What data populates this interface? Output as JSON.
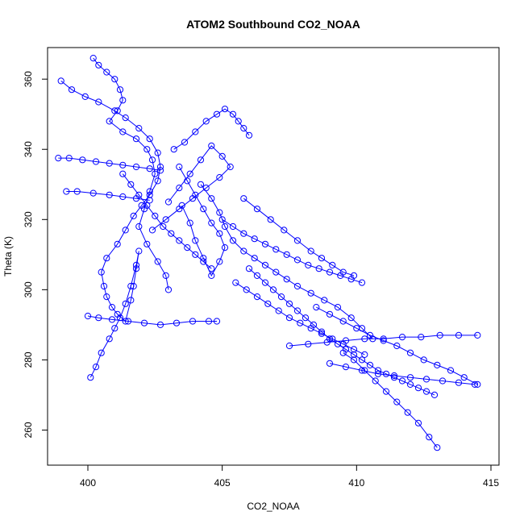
{
  "chart_data": {
    "type": "scatter",
    "title": "ATOM2 Southbound CO2_NOAA",
    "xlabel": "CO2_NOAA",
    "ylabel": "Theta (K)",
    "xlim": [
      398.5,
      415.3
    ],
    "ylim": [
      250.0,
      369.0
    ],
    "xticks": [
      400,
      405,
      410,
      415
    ],
    "yticks": [
      260,
      280,
      300,
      320,
      340,
      360
    ],
    "marker": "open-circle",
    "connected": true,
    "grid": false,
    "legend": "none",
    "colors": {
      "series": "#0000ff",
      "axes": "#000000",
      "background": "#ffffff"
    },
    "series": [
      {
        "x": [
          399.0,
          399.4,
          399.9,
          400.4,
          401.0,
          401.4,
          401.9,
          402.3,
          402.6,
          402.7,
          402.6,
          402.3,
          402.0,
          401.7,
          401.4,
          401.1,
          400.7,
          400.5,
          400.6,
          400.7,
          400.9,
          401.1,
          401.4,
          401.6,
          401.7,
          401.8,
          401.9,
          401.8,
          401.6,
          401.4,
          401.2,
          401.0,
          400.8,
          400.5,
          400.3,
          400.1
        ],
        "y": [
          359.5,
          357.0,
          355.0,
          353.5,
          351.0,
          349.0,
          346.0,
          343.0,
          339.0,
          335.0,
          331.0,
          327.0,
          324.0,
          321.0,
          317.0,
          313.0,
          309.0,
          305.0,
          301.0,
          298.0,
          295.0,
          293.0,
          291.0,
          297.0,
          301.0,
          306.0,
          311.0,
          307.0,
          301.0,
          296.0,
          292.0,
          289.0,
          286.0,
          282.0,
          278.0,
          275.0
        ]
      },
      {
        "x": [
          400.2,
          400.4,
          400.7,
          401.0,
          401.2,
          401.3,
          401.1,
          400.8,
          401.3,
          401.8,
          402.2,
          402.4,
          402.5,
          402.3,
          402.1,
          401.9,
          402.2,
          402.6,
          402.9,
          403.0
        ],
        "y": [
          366.0,
          364.0,
          362.0,
          360.0,
          357.0,
          354.0,
          351.0,
          348.0,
          345.0,
          343.0,
          340.0,
          337.0,
          333.0,
          328.0,
          323.0,
          318.0,
          313.0,
          308.0,
          304.0,
          300.0
        ]
      },
      {
        "x": [
          398.9,
          399.3,
          399.8,
          400.3,
          400.8,
          401.3,
          401.8,
          402.3,
          402.7
        ],
        "y": [
          337.5,
          337.5,
          337.0,
          336.5,
          336.0,
          335.5,
          335.0,
          334.5,
          334.0
        ]
      },
      {
        "x": [
          399.2,
          399.6,
          400.2,
          400.8,
          401.3,
          401.8,
          402.3
        ],
        "y": [
          328.0,
          328.0,
          327.5,
          327.0,
          326.5,
          326.0,
          325.5
        ]
      },
      {
        "x": [
          400.0,
          400.4,
          400.9,
          401.5,
          402.1,
          402.7,
          403.3,
          403.9,
          404.5,
          404.8
        ],
        "y": [
          292.5,
          292.0,
          291.5,
          291.0,
          290.5,
          290.0,
          290.5,
          291.0,
          291.0,
          291.0
        ]
      },
      {
        "x": [
          403.2,
          403.6,
          404.0,
          404.4,
          404.8,
          405.1,
          405.4,
          405.6,
          405.8,
          406.0
        ],
        "y": [
          340.0,
          342.0,
          345.0,
          348.0,
          350.0,
          351.5,
          350.0,
          348.0,
          346.0,
          344.0
        ]
      },
      {
        "x": [
          403.4,
          403.7,
          404.0,
          404.3,
          404.6,
          404.9,
          405.1,
          404.9,
          404.6,
          404.3,
          404.0,
          403.8,
          403.5
        ],
        "y": [
          335.0,
          331.0,
          327.0,
          323.0,
          319.0,
          316.0,
          312.0,
          308.0,
          304.0,
          309.0,
          314.0,
          319.0,
          324.0
        ]
      },
      {
        "x": [
          404.2,
          404.6,
          404.9,
          405.1,
          405.4,
          405.8,
          406.2,
          406.6,
          407.0,
          407.4,
          407.8,
          408.3,
          408.8,
          409.3,
          409.8,
          410.2,
          410.6
        ],
        "y": [
          330.0,
          326.0,
          322.0,
          318.0,
          314.0,
          311.0,
          309.0,
          307.0,
          305.0,
          303.0,
          301.0,
          299.0,
          297.0,
          295.0,
          292.0,
          289.0,
          286.0
        ]
      },
      {
        "x": [
          405.8,
          406.3,
          406.8,
          407.3,
          407.8,
          408.3,
          408.7,
          409.1,
          409.5,
          409.9
        ],
        "y": [
          326.0,
          323.0,
          320.0,
          317.0,
          314.0,
          311.0,
          309.0,
          307.0,
          305.0,
          304.0
        ]
      },
      {
        "x": [
          405.5,
          405.9,
          406.3,
          406.7,
          407.1,
          407.5,
          407.9,
          408.3,
          408.7,
          409.1,
          409.5,
          409.9,
          410.3
        ],
        "y": [
          302.0,
          300.0,
          298.0,
          296.0,
          294.0,
          292.0,
          290.5,
          289.0,
          287.5,
          286.0,
          284.5,
          283.0,
          281.5
        ]
      },
      {
        "x": [
          408.5,
          409.0,
          409.5,
          410.0,
          410.5,
          411.0,
          411.5,
          412.0,
          412.5,
          413.0,
          413.5,
          414.0,
          414.5
        ],
        "y": [
          295.0,
          293.0,
          291.0,
          289.0,
          287.0,
          285.5,
          284.0,
          282.0,
          280.0,
          278.5,
          277.0,
          275.0,
          273.0
        ]
      },
      {
        "x": [
          409.5,
          409.9,
          410.3,
          410.7,
          411.1,
          411.5,
          411.9,
          412.3,
          412.7,
          413.0
        ],
        "y": [
          282.0,
          280.0,
          277.0,
          274.0,
          271.0,
          268.0,
          265.0,
          262.0,
          258.0,
          255.0
        ]
      },
      {
        "x": [
          409.0,
          409.6,
          410.2,
          410.8,
          411.4,
          412.0,
          412.6,
          413.2,
          413.8,
          414.4
        ],
        "y": [
          279.0,
          278.0,
          277.0,
          276.0,
          275.5,
          275.0,
          274.5,
          274.0,
          273.5,
          273.0
        ]
      },
      {
        "x": [
          407.5,
          408.2,
          408.9,
          409.6,
          410.3,
          411.0,
          411.7,
          412.4,
          413.1,
          413.8,
          414.5
        ],
        "y": [
          284.0,
          284.5,
          285.0,
          285.5,
          286.0,
          286.0,
          286.5,
          286.5,
          287.0,
          287.0,
          287.0
        ]
      },
      {
        "x": [
          402.4,
          402.9,
          403.4,
          403.9,
          404.4,
          404.9,
          405.3,
          405.0,
          404.6,
          404.2,
          403.8,
          403.4,
          403.0
        ],
        "y": [
          317.0,
          320.0,
          323.0,
          326.0,
          329.0,
          332.0,
          335.0,
          338.0,
          341.0,
          337.0,
          333.0,
          329.0,
          325.0
        ]
      },
      {
        "x": [
          406.0,
          406.3,
          406.6,
          406.9,
          407.2,
          407.5,
          407.8,
          408.1,
          408.4,
          408.7,
          409.0,
          409.3,
          409.6,
          409.9,
          410.2,
          410.5,
          410.8,
          411.1,
          411.4,
          411.7,
          412.0,
          412.3,
          412.6,
          412.9
        ],
        "y": [
          306.0,
          304.0,
          302.0,
          300.0,
          298.0,
          296.0,
          294.0,
          292.0,
          290.0,
          288.0,
          286.0,
          284.5,
          283.0,
          281.5,
          280.0,
          278.5,
          277.0,
          276.0,
          275.0,
          274.0,
          273.0,
          272.0,
          271.0,
          270.0
        ]
      },
      {
        "x": [
          401.3,
          401.6,
          401.9,
          402.2,
          402.5,
          402.8,
          403.1,
          403.4,
          403.7,
          404.0,
          404.3,
          404.6
        ],
        "y": [
          333.0,
          330.0,
          327.0,
          324.0,
          321.0,
          318.0,
          316.0,
          314.0,
          312.0,
          310.0,
          308.0,
          306.0
        ]
      },
      {
        "x": [
          405.0,
          405.4,
          405.8,
          406.2,
          406.6,
          407.0,
          407.4,
          407.8,
          408.2,
          408.6,
          409.0,
          409.4,
          409.8,
          410.2
        ],
        "y": [
          320.0,
          318.0,
          316.0,
          314.5,
          313.0,
          311.5,
          310.0,
          308.5,
          307.0,
          306.0,
          305.0,
          304.0,
          303.0,
          302.0
        ]
      }
    ]
  }
}
